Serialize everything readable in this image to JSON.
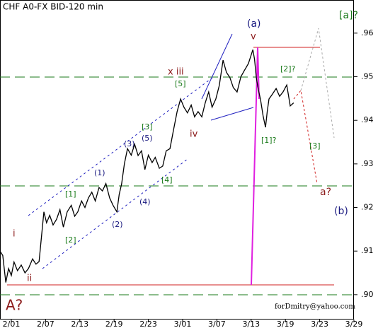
{
  "chart_data": {
    "type": "line",
    "title": "CHF A0-FX BID-120 min",
    "x": [
      -0.33,
      -0.25,
      -0.16,
      -0.08,
      0.0,
      0.08,
      0.18,
      0.29,
      0.4,
      0.5,
      0.62,
      0.72,
      0.81,
      0.95,
      1.03,
      1.12,
      1.22,
      1.32,
      1.42,
      1.52,
      1.63,
      1.75,
      1.85,
      1.94,
      2.05,
      2.15,
      2.25,
      2.35,
      2.45,
      2.56,
      2.66,
      2.76,
      2.87,
      2.97,
      3.08,
      3.15,
      3.22,
      3.3,
      3.39,
      3.5,
      3.6,
      3.7,
      3.8,
      3.9,
      4.0,
      4.11,
      4.2,
      4.32,
      4.42,
      4.52,
      4.63,
      4.73,
      4.84,
      4.94,
      5.04,
      5.14,
      5.25,
      5.35,
      5.45,
      5.56,
      5.66,
      5.76,
      5.86,
      5.97,
      6.07,
      6.18,
      6.28,
      6.38,
      6.48,
      6.59,
      6.7,
      6.8,
      6.92,
      7.05,
      7.1,
      7.15,
      7.21,
      7.27,
      7.35,
      7.42,
      7.47,
      7.52,
      7.62,
      7.73,
      7.83,
      7.93,
      8.04,
      8.14,
      8.24
    ],
    "values": [
      0.91,
      0.909,
      0.9028,
      0.906,
      0.9044,
      0.9075,
      0.9055,
      0.9068,
      0.905,
      0.906,
      0.9082,
      0.907,
      0.9076,
      0.919,
      0.9165,
      0.9182,
      0.916,
      0.9173,
      0.9195,
      0.9155,
      0.919,
      0.9205,
      0.918,
      0.919,
      0.9215,
      0.92,
      0.9222,
      0.9235,
      0.9215,
      0.9246,
      0.9238,
      0.9255,
      0.9222,
      0.9205,
      0.919,
      0.923,
      0.9254,
      0.93,
      0.9335,
      0.932,
      0.9345,
      0.9319,
      0.933,
      0.9287,
      0.932,
      0.9303,
      0.9315,
      0.929,
      0.9295,
      0.933,
      0.9335,
      0.9376,
      0.942,
      0.9449,
      0.943,
      0.9417,
      0.9435,
      0.9408,
      0.942,
      0.9408,
      0.944,
      0.9465,
      0.943,
      0.9449,
      0.948,
      0.9538,
      0.951,
      0.9498,
      0.9475,
      0.9465,
      0.95,
      0.9514,
      0.953,
      0.9562,
      0.954,
      0.9498,
      0.947,
      0.9449,
      0.941,
      0.9384,
      0.942,
      0.9449,
      0.946,
      0.9473,
      0.9455,
      0.9465,
      0.9481,
      0.9433,
      0.944
    ],
    "color": "#000000",
    "xlim": [
      -0.33,
      10
    ],
    "ylim": [
      0.8943,
      0.9676
    ],
    "xticks": [
      {
        "value": 0,
        "label": "2/01"
      },
      {
        "value": 1,
        "label": "2/07"
      },
      {
        "value": 2,
        "label": "2/13"
      },
      {
        "value": 3,
        "label": "2/19"
      },
      {
        "value": 4,
        "label": "2/23"
      },
      {
        "value": 5,
        "label": "3/01"
      },
      {
        "value": 6,
        "label": "3/07"
      },
      {
        "value": 7,
        "label": "3/13"
      },
      {
        "value": 8,
        "label": "3/19"
      },
      {
        "value": 9,
        "label": "3/23"
      },
      {
        "value": 10,
        "label": "3/29"
      }
    ],
    "yticks": [
      {
        "value": 0.9,
        "label": ".90"
      },
      {
        "value": 0.91,
        "label": ".91"
      },
      {
        "value": 0.92,
        "label": ".92"
      },
      {
        "value": 0.93,
        "label": ".93"
      },
      {
        "value": 0.94,
        "label": ".94"
      },
      {
        "value": 0.95,
        "label": ".95"
      },
      {
        "value": 0.96,
        "label": ".96"
      }
    ],
    "annotations": [
      "(a)",
      "v",
      "[a]?",
      "x iii",
      "[5]",
      "[2]?",
      "iv",
      "[1]?",
      "[3]",
      "[3]",
      "(3)",
      "(5)",
      "(1)",
      "[1]",
      "(2)",
      "(4)",
      "[4]",
      "[2]",
      "i",
      "ii",
      "a?",
      "(b)",
      "A?",
      "forDmitry@yahoo.com"
    ]
  }
}
